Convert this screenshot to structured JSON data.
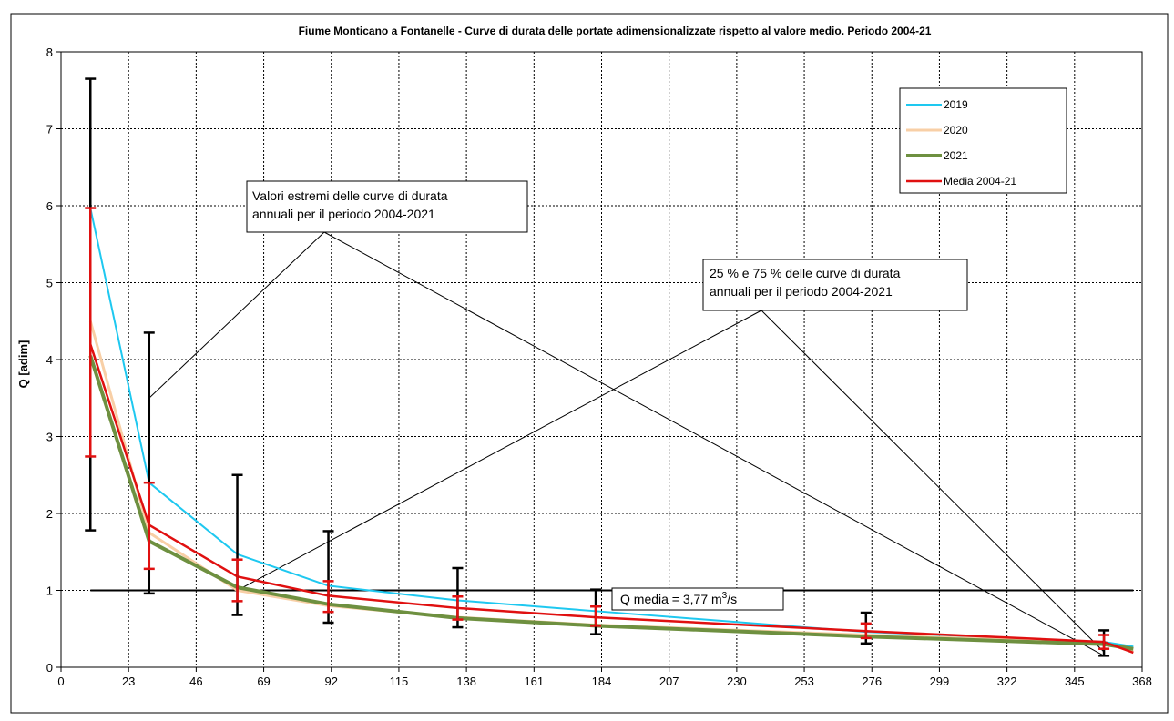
{
  "chart_data": {
    "type": "line",
    "title": "Fiume Monticano a Fontanelle - Curve di durata delle portate adimensionalizzate rispetto al valore medio. Periodo 2004-21",
    "xlabel": "",
    "ylabel": "Q [adim]",
    "xlim": [
      0,
      368
    ],
    "ylim": [
      0,
      8
    ],
    "x_ticks": [
      0,
      23,
      46,
      69,
      92,
      115,
      138,
      161,
      184,
      207,
      230,
      253,
      276,
      299,
      322,
      345,
      368
    ],
    "y_ticks": [
      0,
      1,
      2,
      3,
      4,
      5,
      6,
      7,
      8
    ],
    "grid": true,
    "legend_position": "top-right",
    "colors": {
      "2019": "#1ec8f0",
      "2020": "#f8cfa6",
      "2021": "#6e9040",
      "Media 2004-21": "#e01010",
      "extremes": "#000000",
      "quartiles": "#e01010"
    },
    "series": [
      {
        "name": "2019",
        "x": [
          10,
          30,
          60,
          91,
          135,
          182,
          274,
          355,
          365
        ],
        "y": [
          5.97,
          2.4,
          1.47,
          1.06,
          0.87,
          0.73,
          0.46,
          0.33,
          0.27
        ]
      },
      {
        "name": "2020",
        "x": [
          10,
          30,
          60,
          91,
          135,
          182,
          274,
          355,
          365
        ],
        "y": [
          4.5,
          1.75,
          1.0,
          0.8,
          0.65,
          0.55,
          0.42,
          0.32,
          0.2
        ]
      },
      {
        "name": "2021",
        "x": [
          10,
          30,
          60,
          91,
          135,
          182,
          274,
          355,
          365
        ],
        "y": [
          4.05,
          1.64,
          1.04,
          0.82,
          0.64,
          0.54,
          0.4,
          0.3,
          0.24
        ]
      },
      {
        "name": "Media 2004-21",
        "x": [
          10,
          30,
          60,
          91,
          135,
          182,
          274,
          355,
          365
        ],
        "y": [
          4.2,
          1.85,
          1.18,
          0.93,
          0.77,
          0.65,
          0.47,
          0.33,
          0.19
        ]
      }
    ],
    "error_bars": {
      "extremes": [
        {
          "x": 10,
          "low": 1.78,
          "high": 7.65
        },
        {
          "x": 30,
          "low": 0.96,
          "high": 4.35
        },
        {
          "x": 60,
          "low": 0.68,
          "high": 2.5
        },
        {
          "x": 91,
          "low": 0.58,
          "high": 1.77
        },
        {
          "x": 135,
          "low": 0.52,
          "high": 1.29
        },
        {
          "x": 182,
          "low": 0.43,
          "high": 1.01
        },
        {
          "x": 274,
          "low": 0.31,
          "high": 0.71
        },
        {
          "x": 355,
          "low": 0.15,
          "high": 0.48
        }
      ],
      "quartiles": [
        {
          "x": 10,
          "low": 2.74,
          "high": 5.97
        },
        {
          "x": 30,
          "low": 1.28,
          "high": 2.4
        },
        {
          "x": 60,
          "low": 0.86,
          "high": 1.4
        },
        {
          "x": 91,
          "low": 0.72,
          "high": 1.12
        },
        {
          "x": 135,
          "low": 0.62,
          "high": 0.92
        },
        {
          "x": 182,
          "low": 0.54,
          "high": 0.79
        },
        {
          "x": 274,
          "low": 0.38,
          "high": 0.57
        },
        {
          "x": 355,
          "low": 0.24,
          "high": 0.42
        }
      ]
    },
    "reference_line": {
      "y": 1,
      "x_start": 10,
      "x_end": 365,
      "label_prefix": "Q media = 3,77 m",
      "label_sup": "3",
      "label_suffix": "/s"
    },
    "annotations": {
      "extremes_line1": "Valori estremi delle curve di durata",
      "extremes_line2": "annuali per il periodo 2004-2021",
      "quartiles_line1": "25 % e 75 % delle curve di durata",
      "quartiles_line2": "annuali per il periodo 2004-2021",
      "extremes_targets": [
        [
          30,
          3.5
        ],
        [
          355,
          0.15
        ]
      ],
      "quartiles_targets": [
        [
          60,
          1.0
        ],
        [
          355,
          0.2
        ]
      ]
    }
  }
}
